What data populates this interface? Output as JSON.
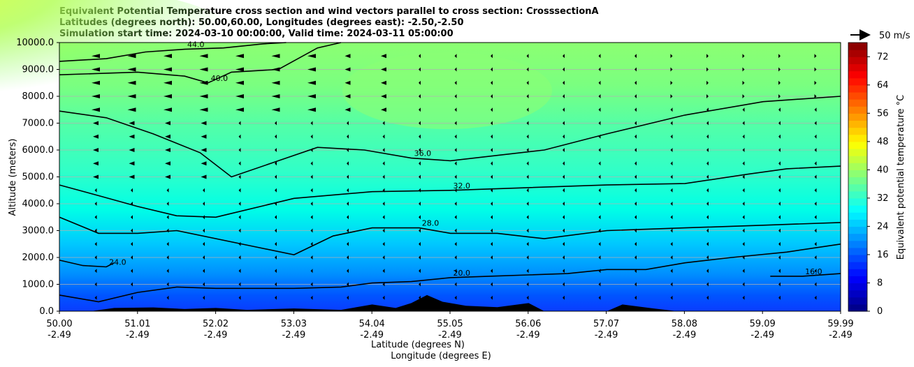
{
  "chart_data": {
    "type": "heatmap",
    "title_lines": [
      "Equivalent Potential Temperature cross section and wind vectors parallel to cross section: CrosssectionA",
      "Latitudes (degrees north): 50.00,60.00, Longitudes (degrees east): -2.50,-2.50",
      "Simulation start time: 2024-03-10 00:00:00, Valid time: 2024-03-11 05:00:00"
    ],
    "xlabel_lat": "Latitude (degrees N)",
    "xlabel_lon": "Longitude (degrees E)",
    "ylabel": "Altitude (meters)",
    "x_ticks_lat": [
      "50.00",
      "51.01",
      "52.02",
      "53.03",
      "54.04",
      "55.05",
      "56.06",
      "57.07",
      "58.08",
      "59.09",
      "59.99"
    ],
    "x_ticks_lon": [
      "-2.49",
      "-2.49",
      "-2.49",
      "-2.49",
      "-2.49",
      "-2.49",
      "-2.49",
      "-2.49",
      "-2.49",
      "-2.49",
      "-2.49"
    ],
    "y_ticks": [
      "0.0",
      "1000.0",
      "2000.0",
      "3000.0",
      "4000.0",
      "5000.0",
      "6000.0",
      "7000.0",
      "8000.0",
      "9000.0",
      "10000.0"
    ],
    "ylim": [
      0,
      10000
    ],
    "xlim": [
      50.0,
      59.99
    ],
    "grid": "horizontal",
    "colorbar": {
      "label": "Equivalent potential temperature °C",
      "min": 0,
      "max": 76,
      "step": 2,
      "ticks": [
        "0",
        "8",
        "16",
        "24",
        "32",
        "40",
        "48",
        "56",
        "64",
        "72"
      ]
    },
    "quiver_key": "50 m/s",
    "contours": [
      {
        "level": 24,
        "label": "24.0",
        "pts": [
          [
            50.0,
            1.9
          ],
          [
            50.3,
            1.7
          ],
          [
            50.6,
            1.65
          ],
          [
            50.7,
            1.8
          ]
        ]
      },
      {
        "level": 28,
        "label": "28.0",
        "pts": [
          [
            50.0,
            3.5
          ],
          [
            50.5,
            2.9
          ],
          [
            51.0,
            2.9
          ],
          [
            51.5,
            3.0
          ],
          [
            52.5,
            2.4
          ],
          [
            53.0,
            2.1
          ],
          [
            53.5,
            2.8
          ],
          [
            54.0,
            3.1
          ],
          [
            54.6,
            3.1
          ],
          [
            55.0,
            2.9
          ],
          [
            55.6,
            2.9
          ],
          [
            56.2,
            2.7
          ],
          [
            57.0,
            3.0
          ],
          [
            58.0,
            3.1
          ],
          [
            59.0,
            3.2
          ],
          [
            59.99,
            3.3
          ]
        ]
      },
      {
        "level": 32,
        "label": "32.0",
        "pts": [
          [
            50.0,
            4.7
          ],
          [
            50.5,
            4.3
          ],
          [
            51.0,
            3.9
          ],
          [
            51.5,
            3.55
          ],
          [
            52.0,
            3.5
          ],
          [
            53.0,
            4.2
          ],
          [
            54.0,
            4.45
          ],
          [
            55.0,
            4.5
          ],
          [
            56.0,
            4.6
          ],
          [
            57.0,
            4.7
          ],
          [
            58.0,
            4.75
          ],
          [
            58.8,
            5.1
          ],
          [
            59.3,
            5.3
          ],
          [
            59.99,
            5.4
          ]
        ]
      },
      {
        "level": 36,
        "label": "36.0",
        "pts": [
          [
            50.0,
            7.45
          ],
          [
            50.6,
            7.2
          ],
          [
            51.2,
            6.6
          ],
          [
            51.8,
            5.9
          ],
          [
            52.2,
            5.0
          ],
          [
            52.8,
            5.6
          ],
          [
            53.3,
            6.1
          ],
          [
            53.9,
            6.0
          ],
          [
            54.5,
            5.7
          ],
          [
            55.0,
            5.6
          ],
          [
            55.6,
            5.8
          ],
          [
            56.2,
            6.0
          ],
          [
            57.0,
            6.6
          ],
          [
            58.0,
            7.3
          ],
          [
            59.0,
            7.8
          ],
          [
            59.99,
            8.0
          ]
        ]
      },
      {
        "level": 40,
        "label": "40.0",
        "pts": [
          [
            50.0,
            8.8
          ],
          [
            50.5,
            8.85
          ],
          [
            51.0,
            8.9
          ],
          [
            51.6,
            8.75
          ],
          [
            51.9,
            8.5
          ],
          [
            52.2,
            8.9
          ],
          [
            52.8,
            9.0
          ],
          [
            53.3,
            9.8
          ],
          [
            53.6,
            10.0
          ]
        ]
      },
      {
        "level": 44,
        "label": "44.0",
        "pts": [
          [
            50.0,
            9.3
          ],
          [
            50.6,
            9.4
          ],
          [
            51.1,
            9.65
          ],
          [
            51.6,
            9.75
          ],
          [
            52.1,
            9.8
          ],
          [
            52.6,
            9.95
          ],
          [
            52.9,
            10.0
          ]
        ]
      },
      {
        "level": 20,
        "label": "20.0",
        "pts": [
          [
            50.0,
            0.6
          ],
          [
            50.5,
            0.35
          ],
          [
            51.0,
            0.7
          ],
          [
            51.5,
            0.9
          ],
          [
            52.0,
            0.85
          ],
          [
            52.6,
            0.85
          ],
          [
            53.0,
            0.85
          ],
          [
            53.6,
            0.9
          ],
          [
            54.0,
            1.05
          ],
          [
            54.5,
            1.1
          ],
          [
            55.0,
            1.25
          ],
          [
            55.5,
            1.3
          ],
          [
            56.0,
            1.35
          ],
          [
            56.5,
            1.4
          ],
          [
            57.0,
            1.55
          ],
          [
            57.5,
            1.55
          ],
          [
            58.0,
            1.8
          ],
          [
            58.6,
            2.0
          ],
          [
            59.3,
            2.2
          ],
          [
            59.99,
            2.5
          ]
        ]
      },
      {
        "level": 16,
        "label": "16.0",
        "pts": [
          [
            59.09,
            1.3
          ],
          [
            59.5,
            1.3
          ],
          [
            59.99,
            1.4
          ]
        ]
      }
    ]
  }
}
